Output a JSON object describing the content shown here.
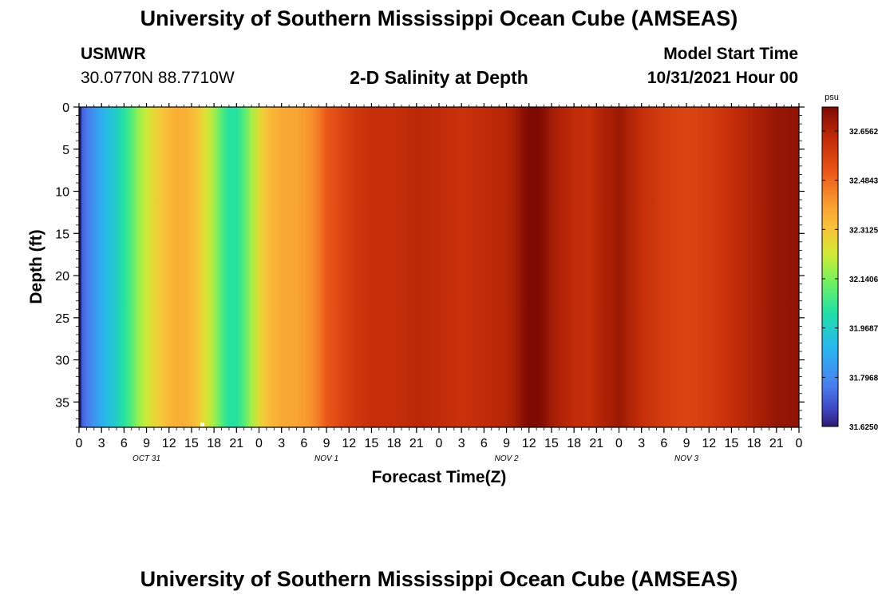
{
  "header": {
    "title": "University of Southern Mississippi Ocean Cube (AMSEAS)",
    "station": "USMWR",
    "location": "30.0770N  88.7710W",
    "subtitle": "2-D Salinity at Depth",
    "model_start_label": "Model Start Time",
    "model_start_value": "10/31/2021 Hour 00"
  },
  "footer": {
    "title": "University of Southern Mississippi Ocean Cube (AMSEAS)"
  },
  "chart_data": {
    "type": "heatmap",
    "xlabel": "Forecast Time(Z)",
    "ylabel": "Depth (ft)",
    "x_hours": [
      0,
      96
    ],
    "ylim": [
      38,
      0
    ],
    "yticks": [
      0,
      5,
      10,
      15,
      20,
      25,
      30,
      35
    ],
    "xtick_labels": [
      "0",
      "3",
      "6",
      "9",
      "12",
      "15",
      "18",
      "21",
      "0",
      "3",
      "6",
      "9",
      "12",
      "15",
      "18",
      "21",
      "0",
      "3",
      "6",
      "9",
      "12",
      "15",
      "18",
      "21",
      "0",
      "3",
      "6",
      "9",
      "12",
      "15",
      "18",
      "21",
      "0"
    ],
    "date_labels": [
      "OCT 31",
      "NOV 1",
      "NOV 2",
      "NOV 3"
    ],
    "colorbar": {
      "unit": "psu",
      "ticks": [
        "32.6562",
        "32.4843",
        "32.3125",
        "32.1406",
        "31.9687",
        "31.7968",
        "31.6250"
      ],
      "range": [
        31.625,
        32.74
      ]
    },
    "salinity_by_hour": {
      "x": [
        0,
        1,
        2,
        3,
        4,
        5,
        6,
        7,
        8,
        9,
        10,
        11,
        12,
        13,
        14,
        15,
        16,
        17,
        18,
        19,
        20,
        21,
        22,
        23,
        24,
        25,
        26,
        27,
        28,
        29,
        30,
        31,
        32,
        33,
        36,
        39,
        42,
        45,
        48,
        51,
        54,
        57,
        58,
        59,
        60,
        61,
        62,
        63,
        64,
        66,
        68,
        70,
        72,
        75,
        78,
        81,
        84,
        87,
        90,
        93,
        96
      ],
      "values": [
        31.7,
        31.76,
        31.82,
        31.88,
        31.93,
        31.97,
        32.03,
        32.09,
        32.17,
        32.22,
        32.27,
        32.31,
        32.34,
        32.36,
        32.36,
        32.34,
        32.3,
        32.24,
        32.18,
        32.09,
        32.03,
        32.03,
        32.09,
        32.18,
        32.26,
        32.32,
        32.35,
        32.37,
        32.38,
        32.38,
        32.4,
        32.42,
        32.46,
        32.51,
        32.58,
        32.62,
        32.62,
        32.64,
        32.63,
        32.61,
        32.63,
        32.65,
        32.67,
        32.71,
        32.74,
        32.74,
        32.72,
        32.68,
        32.66,
        32.63,
        32.62,
        32.66,
        32.69,
        32.62,
        32.58,
        32.56,
        32.58,
        32.62,
        32.66,
        32.7,
        32.71
      ]
    }
  }
}
